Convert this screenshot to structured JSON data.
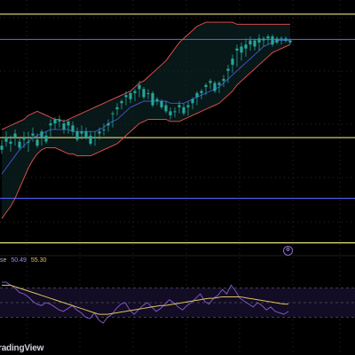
{
  "colors": {
    "background": "#000000",
    "candle_up": "#26a69a",
    "candle_down": "#ef5350",
    "bollinger_band": "#ef5350",
    "bollinger_basis": "#3f5bd6",
    "horizontal_level_yellow": "#e8e07a",
    "horizontal_level_blue": "#4c5cf0",
    "rsi_line": "#7e57c2",
    "rsi_ma": "#e0c25a",
    "rsi_band_fill": "#1a1133"
  },
  "icons": {
    "settings": "settings-icon",
    "brand_logo": "tradingview-logo"
  },
  "rsi": {
    "label": "se",
    "value_1": "50.49",
    "value_2": "55.30"
  },
  "brand": {
    "text": "radingView"
  },
  "chart_data": {
    "type": "candlestick",
    "ohlc": [
      [
        62,
        58,
        66,
        72
      ],
      [
        70,
        65,
        74,
        80
      ],
      [
        68,
        60,
        70,
        76
      ],
      [
        74,
        66,
        78,
        82
      ],
      [
        64,
        62,
        70,
        74
      ],
      [
        72,
        64,
        74,
        80
      ],
      [
        70,
        60,
        70,
        80
      ],
      [
        76,
        70,
        78,
        84
      ],
      [
        66,
        64,
        72,
        78
      ],
      [
        74,
        66,
        80,
        82
      ],
      [
        70,
        68,
        76,
        80
      ],
      [
        86,
        74,
        88,
        92
      ],
      [
        88,
        82,
        92,
        94
      ],
      [
        90,
        84,
        92,
        96
      ],
      [
        82,
        78,
        88,
        92
      ],
      [
        86,
        78,
        90,
        92
      ],
      [
        80,
        76,
        86,
        90
      ],
      [
        72,
        70,
        80,
        84
      ],
      [
        78,
        72,
        80,
        86
      ],
      [
        74,
        72,
        80,
        84
      ],
      [
        68,
        66,
        76,
        80
      ],
      [
        74,
        66,
        74,
        80
      ],
      [
        78,
        72,
        80,
        84
      ],
      [
        82,
        76,
        82,
        88
      ],
      [
        86,
        80,
        88,
        92
      ],
      [
        98,
        84,
        98,
        100
      ],
      [
        102,
        96,
        104,
        108
      ],
      [
        108,
        102,
        110,
        112
      ],
      [
        114,
        106,
        116,
        120
      ],
      [
        112,
        108,
        118,
        120
      ],
      [
        118,
        110,
        120,
        122
      ],
      [
        122,
        114,
        126,
        130
      ],
      [
        114,
        112,
        122,
        124
      ],
      [
        118,
        112,
        118,
        122
      ],
      [
        106,
        104,
        118,
        120
      ],
      [
        110,
        106,
        112,
        114
      ],
      [
        104,
        102,
        110,
        112
      ],
      [
        100,
        98,
        106,
        110
      ],
      [
        96,
        92,
        100,
        104
      ],
      [
        100,
        94,
        100,
        104
      ],
      [
        104,
        98,
        106,
        110
      ],
      [
        98,
        96,
        104,
        108
      ],
      [
        104,
        96,
        106,
        110
      ],
      [
        108,
        102,
        112,
        114
      ],
      [
        114,
        106,
        118,
        120
      ],
      [
        118,
        112,
        120,
        122
      ],
      [
        124,
        116,
        126,
        128
      ],
      [
        128,
        122,
        130,
        132
      ],
      [
        120,
        118,
        128,
        130
      ],
      [
        126,
        118,
        128,
        130
      ],
      [
        130,
        124,
        132,
        136
      ],
      [
        140,
        128,
        142,
        146
      ],
      [
        146,
        138,
        152,
        156
      ],
      [
        160,
        144,
        162,
        166
      ],
      [
        158,
        150,
        164,
        168
      ],
      [
        162,
        154,
        166,
        172
      ],
      [
        166,
        160,
        170,
        174
      ],
      [
        164,
        160,
        170,
        172
      ],
      [
        168,
        160,
        172,
        176
      ],
      [
        170,
        164,
        172,
        174
      ],
      [
        172,
        166,
        174,
        176
      ],
      [
        166,
        164,
        174,
        176
      ],
      [
        168,
        166,
        172,
        174
      ],
      [
        172,
        166,
        172,
        174
      ],
      [
        170,
        168,
        172,
        174
      ],
      [
        168,
        166,
        170,
        172
      ]
    ],
    "ohlc_order": "open,low,close,high",
    "bollinger_upper": [
      82,
      84,
      86,
      88,
      90,
      92,
      96,
      98,
      100,
      98,
      96,
      94,
      92,
      92,
      90,
      92,
      94,
      96,
      98,
      100,
      102,
      104,
      106,
      108,
      110,
      112,
      114,
      116,
      118,
      120,
      124,
      128,
      130,
      134,
      138,
      142,
      146,
      150,
      156,
      162,
      168,
      172,
      176,
      180,
      184,
      186,
      188,
      188,
      188,
      188,
      188,
      188,
      188,
      186,
      186,
      186,
      186,
      186,
      186,
      186,
      186,
      186,
      186,
      186,
      186,
      186
    ],
    "bollinger_lower": [
      -6,
      0,
      6,
      14,
      24,
      34,
      44,
      52,
      58,
      62,
      64,
      64,
      64,
      62,
      60,
      58,
      58,
      56,
      56,
      56,
      56,
      58,
      60,
      62,
      64,
      66,
      68,
      72,
      76,
      80,
      84,
      88,
      90,
      92,
      92,
      92,
      92,
      92,
      90,
      90,
      90,
      92,
      94,
      96,
      98,
      100,
      102,
      104,
      106,
      108,
      112,
      116,
      120,
      126,
      130,
      134,
      138,
      142,
      146,
      150,
      154,
      158,
      160,
      162,
      164,
      166
    ],
    "bollinger_basis": [
      38,
      44,
      50,
      56,
      62,
      66,
      70,
      74,
      76,
      78,
      80,
      82,
      82,
      82,
      82,
      82,
      80,
      80,
      80,
      80,
      80,
      80,
      82,
      84,
      88,
      90,
      92,
      96,
      100,
      104,
      106,
      108,
      110,
      110,
      110,
      110,
      110,
      110,
      108,
      108,
      108,
      108,
      110,
      112,
      114,
      116,
      118,
      120,
      122,
      124,
      128,
      132,
      136,
      140,
      144,
      148,
      152,
      156,
      160,
      164,
      166,
      168,
      170,
      170,
      170,
      170
    ],
    "horizontal_levels": [
      {
        "price": 196,
        "color": "#e8e07a"
      },
      {
        "price": 171,
        "color": "#4c5cf0"
      },
      {
        "price": 74,
        "color": "#e8e07a"
      },
      {
        "price": 14,
        "color": "#4c5cf0"
      },
      {
        "price": -30,
        "color": "#e8e07a"
      }
    ],
    "rsi_series": [
      78,
      78,
      74,
      70,
      64,
      62,
      58,
      52,
      48,
      46,
      50,
      48,
      44,
      40,
      38,
      42,
      46,
      40,
      36,
      30,
      28,
      36,
      26,
      22,
      30,
      34,
      42,
      48,
      50,
      40,
      34,
      40,
      46,
      50,
      44,
      38,
      42,
      48,
      54,
      50,
      44,
      40,
      46,
      50,
      56,
      62,
      52,
      48,
      56,
      60,
      68,
      62,
      74,
      66,
      56,
      52,
      48,
      44,
      50,
      46,
      40,
      44,
      38,
      36,
      34,
      38
    ],
    "rsi_ma_series": [
      74,
      74,
      74,
      72,
      70,
      68,
      66,
      64,
      62,
      60,
      58,
      56,
      54,
      52,
      50,
      48,
      46,
      44,
      42,
      40,
      38,
      36,
      34,
      34,
      34,
      35,
      36,
      37,
      38,
      39,
      40,
      41,
      42,
      43,
      44,
      45,
      46,
      46,
      47,
      48,
      49,
      50,
      51,
      52,
      53,
      54,
      55,
      56,
      56,
      57,
      58,
      58,
      58,
      58,
      58,
      57,
      56,
      55,
      54,
      53,
      52,
      51,
      50,
      49,
      48,
      48
    ],
    "rsi_range": [
      0,
      100
    ],
    "rsi_levels": [
      70,
      50,
      30
    ]
  }
}
